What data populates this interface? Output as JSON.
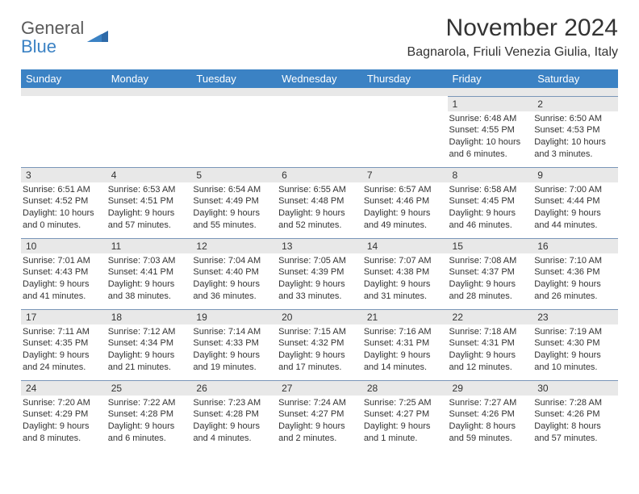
{
  "brand": {
    "name1": "General",
    "name2": "Blue"
  },
  "title": "November 2024",
  "location": "Bagnarola, Friuli Venezia Giulia, Italy",
  "colors": {
    "header_bg": "#3b82c4",
    "header_text": "#ffffff",
    "daynum_bg": "#e8e8e8",
    "row_border": "#7a96b8",
    "text": "#333333",
    "logo_gray": "#5a5a5a",
    "logo_blue": "#3b82c4",
    "page_bg": "#ffffff"
  },
  "typography": {
    "title_fontsize": 30,
    "location_fontsize": 16,
    "header_fontsize": 13,
    "daynum_fontsize": 12,
    "body_fontsize": 11
  },
  "day_headers": [
    "Sunday",
    "Monday",
    "Tuesday",
    "Wednesday",
    "Thursday",
    "Friday",
    "Saturday"
  ],
  "weeks": [
    [
      null,
      null,
      null,
      null,
      null,
      {
        "num": "1",
        "sunrise": "Sunrise: 6:48 AM",
        "sunset": "Sunset: 4:55 PM",
        "daylight": "Daylight: 10 hours and 6 minutes."
      },
      {
        "num": "2",
        "sunrise": "Sunrise: 6:50 AM",
        "sunset": "Sunset: 4:53 PM",
        "daylight": "Daylight: 10 hours and 3 minutes."
      }
    ],
    [
      {
        "num": "3",
        "sunrise": "Sunrise: 6:51 AM",
        "sunset": "Sunset: 4:52 PM",
        "daylight": "Daylight: 10 hours and 0 minutes."
      },
      {
        "num": "4",
        "sunrise": "Sunrise: 6:53 AM",
        "sunset": "Sunset: 4:51 PM",
        "daylight": "Daylight: 9 hours and 57 minutes."
      },
      {
        "num": "5",
        "sunrise": "Sunrise: 6:54 AM",
        "sunset": "Sunset: 4:49 PM",
        "daylight": "Daylight: 9 hours and 55 minutes."
      },
      {
        "num": "6",
        "sunrise": "Sunrise: 6:55 AM",
        "sunset": "Sunset: 4:48 PM",
        "daylight": "Daylight: 9 hours and 52 minutes."
      },
      {
        "num": "7",
        "sunrise": "Sunrise: 6:57 AM",
        "sunset": "Sunset: 4:46 PM",
        "daylight": "Daylight: 9 hours and 49 minutes."
      },
      {
        "num": "8",
        "sunrise": "Sunrise: 6:58 AM",
        "sunset": "Sunset: 4:45 PM",
        "daylight": "Daylight: 9 hours and 46 minutes."
      },
      {
        "num": "9",
        "sunrise": "Sunrise: 7:00 AM",
        "sunset": "Sunset: 4:44 PM",
        "daylight": "Daylight: 9 hours and 44 minutes."
      }
    ],
    [
      {
        "num": "10",
        "sunrise": "Sunrise: 7:01 AM",
        "sunset": "Sunset: 4:43 PM",
        "daylight": "Daylight: 9 hours and 41 minutes."
      },
      {
        "num": "11",
        "sunrise": "Sunrise: 7:03 AM",
        "sunset": "Sunset: 4:41 PM",
        "daylight": "Daylight: 9 hours and 38 minutes."
      },
      {
        "num": "12",
        "sunrise": "Sunrise: 7:04 AM",
        "sunset": "Sunset: 4:40 PM",
        "daylight": "Daylight: 9 hours and 36 minutes."
      },
      {
        "num": "13",
        "sunrise": "Sunrise: 7:05 AM",
        "sunset": "Sunset: 4:39 PM",
        "daylight": "Daylight: 9 hours and 33 minutes."
      },
      {
        "num": "14",
        "sunrise": "Sunrise: 7:07 AM",
        "sunset": "Sunset: 4:38 PM",
        "daylight": "Daylight: 9 hours and 31 minutes."
      },
      {
        "num": "15",
        "sunrise": "Sunrise: 7:08 AM",
        "sunset": "Sunset: 4:37 PM",
        "daylight": "Daylight: 9 hours and 28 minutes."
      },
      {
        "num": "16",
        "sunrise": "Sunrise: 7:10 AM",
        "sunset": "Sunset: 4:36 PM",
        "daylight": "Daylight: 9 hours and 26 minutes."
      }
    ],
    [
      {
        "num": "17",
        "sunrise": "Sunrise: 7:11 AM",
        "sunset": "Sunset: 4:35 PM",
        "daylight": "Daylight: 9 hours and 24 minutes."
      },
      {
        "num": "18",
        "sunrise": "Sunrise: 7:12 AM",
        "sunset": "Sunset: 4:34 PM",
        "daylight": "Daylight: 9 hours and 21 minutes."
      },
      {
        "num": "19",
        "sunrise": "Sunrise: 7:14 AM",
        "sunset": "Sunset: 4:33 PM",
        "daylight": "Daylight: 9 hours and 19 minutes."
      },
      {
        "num": "20",
        "sunrise": "Sunrise: 7:15 AM",
        "sunset": "Sunset: 4:32 PM",
        "daylight": "Daylight: 9 hours and 17 minutes."
      },
      {
        "num": "21",
        "sunrise": "Sunrise: 7:16 AM",
        "sunset": "Sunset: 4:31 PM",
        "daylight": "Daylight: 9 hours and 14 minutes."
      },
      {
        "num": "22",
        "sunrise": "Sunrise: 7:18 AM",
        "sunset": "Sunset: 4:31 PM",
        "daylight": "Daylight: 9 hours and 12 minutes."
      },
      {
        "num": "23",
        "sunrise": "Sunrise: 7:19 AM",
        "sunset": "Sunset: 4:30 PM",
        "daylight": "Daylight: 9 hours and 10 minutes."
      }
    ],
    [
      {
        "num": "24",
        "sunrise": "Sunrise: 7:20 AM",
        "sunset": "Sunset: 4:29 PM",
        "daylight": "Daylight: 9 hours and 8 minutes."
      },
      {
        "num": "25",
        "sunrise": "Sunrise: 7:22 AM",
        "sunset": "Sunset: 4:28 PM",
        "daylight": "Daylight: 9 hours and 6 minutes."
      },
      {
        "num": "26",
        "sunrise": "Sunrise: 7:23 AM",
        "sunset": "Sunset: 4:28 PM",
        "daylight": "Daylight: 9 hours and 4 minutes."
      },
      {
        "num": "27",
        "sunrise": "Sunrise: 7:24 AM",
        "sunset": "Sunset: 4:27 PM",
        "daylight": "Daylight: 9 hours and 2 minutes."
      },
      {
        "num": "28",
        "sunrise": "Sunrise: 7:25 AM",
        "sunset": "Sunset: 4:27 PM",
        "daylight": "Daylight: 9 hours and 1 minute."
      },
      {
        "num": "29",
        "sunrise": "Sunrise: 7:27 AM",
        "sunset": "Sunset: 4:26 PM",
        "daylight": "Daylight: 8 hours and 59 minutes."
      },
      {
        "num": "30",
        "sunrise": "Sunrise: 7:28 AM",
        "sunset": "Sunset: 4:26 PM",
        "daylight": "Daylight: 8 hours and 57 minutes."
      }
    ]
  ]
}
